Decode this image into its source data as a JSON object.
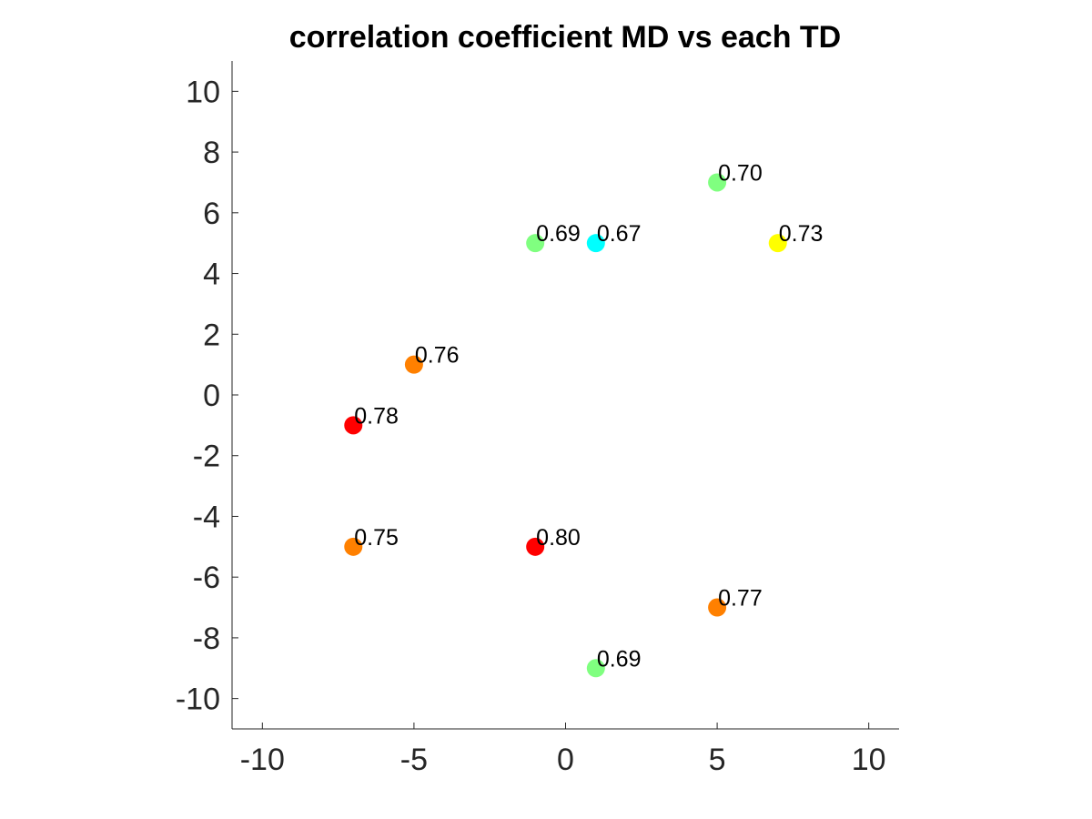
{
  "chart_data": {
    "type": "scatter",
    "title": "correlation coefficient MD vs each TD",
    "xlabel": "",
    "ylabel": "",
    "xlim": [
      -11,
      11
    ],
    "ylim": [
      -11,
      11
    ],
    "xticks": [
      -10,
      -5,
      0,
      5,
      10
    ],
    "yticks": [
      -10,
      -8,
      -6,
      -4,
      -2,
      0,
      2,
      4,
      6,
      8,
      10
    ],
    "grid": false,
    "points": [
      {
        "x": 5,
        "y": 7,
        "label": "0.70",
        "color": "#80ff80"
      },
      {
        "x": -1,
        "y": 5,
        "label": "0.69",
        "color": "#80ff80"
      },
      {
        "x": 1,
        "y": 5,
        "label": "0.67",
        "color": "#00ffff"
      },
      {
        "x": 7,
        "y": 5,
        "label": "0.73",
        "color": "#ffff00"
      },
      {
        "x": -5,
        "y": 1,
        "label": "0.76",
        "color": "#ff8000"
      },
      {
        "x": -7,
        "y": -1,
        "label": "0.78",
        "color": "#ff0000"
      },
      {
        "x": -7,
        "y": -5,
        "label": "0.75",
        "color": "#ff8000"
      },
      {
        "x": -1,
        "y": -5,
        "label": "0.80",
        "color": "#ff0000"
      },
      {
        "x": 5,
        "y": -7,
        "label": "0.77",
        "color": "#ff8000"
      },
      {
        "x": 1,
        "y": -9,
        "label": "0.69",
        "color": "#80ff80"
      }
    ]
  }
}
